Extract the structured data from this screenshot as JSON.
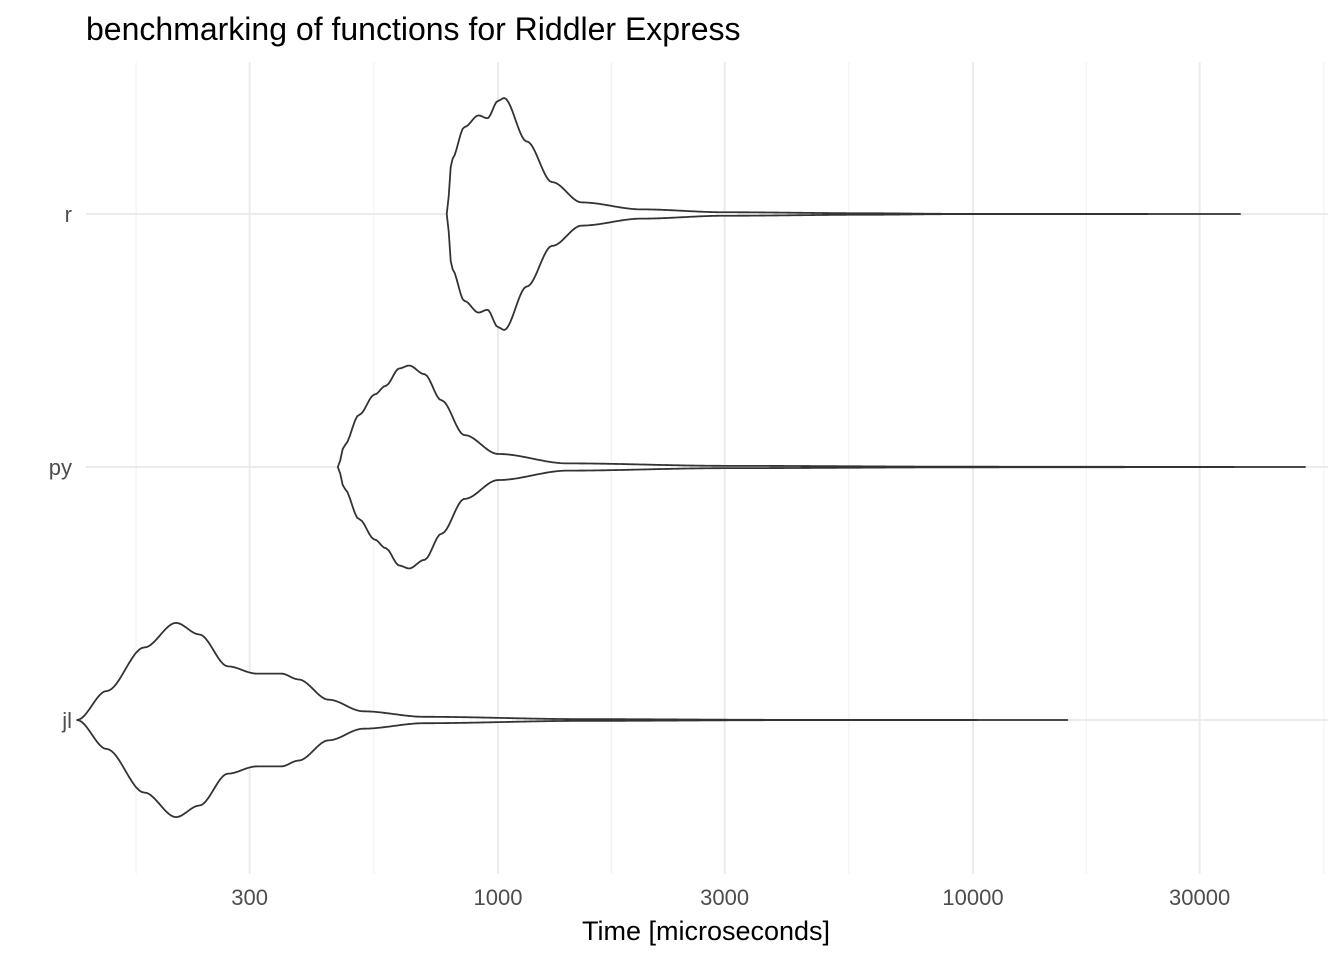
{
  "chart_data": {
    "type": "violin",
    "title": "benchmarking of functions for Riddler Express",
    "xlabel": "Time [microseconds]",
    "ylabel": "",
    "x_scale": "log10",
    "xlim": [
      130,
      62000
    ],
    "x_ticks": [
      300,
      1000,
      3000,
      10000,
      30000
    ],
    "x_tick_labels": [
      "300",
      "1000",
      "3000",
      "10000",
      "30000"
    ],
    "x_minor_ticks": [
      173,
      548,
      1732,
      5477,
      17321,
      54772
    ],
    "categories": [
      "r",
      "py",
      "jl"
    ],
    "grid": true,
    "legend": "none",
    "line_color": "#333333",
    "series": [
      {
        "name": "r",
        "min": 780,
        "max": 36500,
        "profile": [
          [
            780,
            0.0
          ],
          [
            800,
            0.38
          ],
          [
            850,
            0.6
          ],
          [
            910,
            0.68
          ],
          [
            950,
            0.66
          ],
          [
            1000,
            0.78
          ],
          [
            1030,
            0.8
          ],
          [
            1150,
            0.5
          ],
          [
            1300,
            0.22
          ],
          [
            1500,
            0.08
          ],
          [
            2000,
            0.032
          ],
          [
            3000,
            0.012
          ],
          [
            6000,
            0.005
          ],
          [
            9000,
            0.001
          ],
          [
            36500,
            0.0
          ]
        ]
      },
      {
        "name": "py",
        "min": 460,
        "max": 50000,
        "profile": [
          [
            460,
            0.0
          ],
          [
            475,
            0.15
          ],
          [
            510,
            0.36
          ],
          [
            550,
            0.5
          ],
          [
            580,
            0.56
          ],
          [
            620,
            0.68
          ],
          [
            650,
            0.7
          ],
          [
            700,
            0.64
          ],
          [
            760,
            0.46
          ],
          [
            850,
            0.22
          ],
          [
            1000,
            0.09
          ],
          [
            1400,
            0.025
          ],
          [
            3000,
            0.008
          ],
          [
            10000,
            0.002
          ],
          [
            50000,
            0.0
          ]
        ]
      },
      {
        "name": "jl",
        "min": 130,
        "max": 15800,
        "profile": [
          [
            130,
            0.0
          ],
          [
            150,
            0.2
          ],
          [
            180,
            0.5
          ],
          [
            210,
            0.67
          ],
          [
            235,
            0.59
          ],
          [
            270,
            0.37
          ],
          [
            310,
            0.32
          ],
          [
            350,
            0.32
          ],
          [
            380,
            0.28
          ],
          [
            440,
            0.14
          ],
          [
            520,
            0.06
          ],
          [
            700,
            0.022
          ],
          [
            1500,
            0.006
          ],
          [
            4000,
            0.001
          ],
          [
            15800,
            0.0
          ]
        ]
      }
    ]
  }
}
